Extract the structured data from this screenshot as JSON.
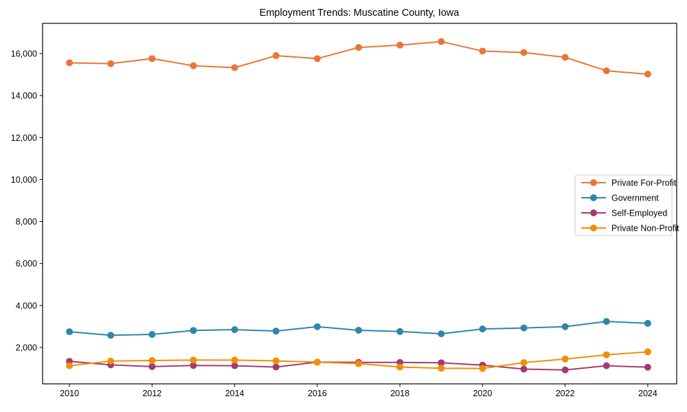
{
  "title": "Employment Trends: Muscatine County, Iowa",
  "chart_data": {
    "type": "line",
    "title": "Employment Trends: Muscatine County, Iowa",
    "xlabel": "",
    "ylabel": "",
    "x": [
      2010,
      2011,
      2012,
      2013,
      2014,
      2015,
      2016,
      2017,
      2018,
      2019,
      2020,
      2021,
      2022,
      2023,
      2024
    ],
    "x_tick_labels": [
      "2010",
      "2012",
      "2014",
      "2016",
      "2018",
      "2020",
      "2022",
      "2024"
    ],
    "x_ticks": [
      2010,
      2012,
      2014,
      2016,
      2018,
      2020,
      2022,
      2024
    ],
    "y_ticks": [
      2000,
      4000,
      6000,
      8000,
      10000,
      12000,
      14000,
      16000
    ],
    "y_tick_labels": [
      "2,000",
      "4,000",
      "6,000",
      "8,000",
      "10,000",
      "12,000",
      "14,000",
      "16,000"
    ],
    "xlim": [
      2009.35,
      2024.7
    ],
    "ylim": [
      267,
      17439
    ],
    "grid": false,
    "legend_position": "center right",
    "series": [
      {
        "name": "Private For-Profit",
        "color": "#E8763A",
        "values": [
          15560,
          15520,
          15760,
          15420,
          15330,
          15900,
          15760,
          16290,
          16400,
          16570,
          16120,
          16050,
          15820,
          15180,
          15020
        ]
      },
      {
        "name": "Government",
        "color": "#2E86AB",
        "values": [
          2750,
          2580,
          2620,
          2810,
          2850,
          2780,
          2990,
          2820,
          2760,
          2650,
          2880,
          2930,
          2990,
          3240,
          3150
        ]
      },
      {
        "name": "Self-Employed",
        "color": "#A23B72",
        "values": [
          1340,
          1170,
          1090,
          1140,
          1130,
          1070,
          1300,
          1290,
          1290,
          1270,
          1160,
          970,
          930,
          1130,
          1060
        ]
      },
      {
        "name": "Private Non-Profit",
        "color": "#F18F01",
        "values": [
          1130,
          1350,
          1380,
          1400,
          1400,
          1360,
          1300,
          1230,
          1070,
          1010,
          1000,
          1280,
          1450,
          1650,
          1790
        ]
      }
    ]
  }
}
